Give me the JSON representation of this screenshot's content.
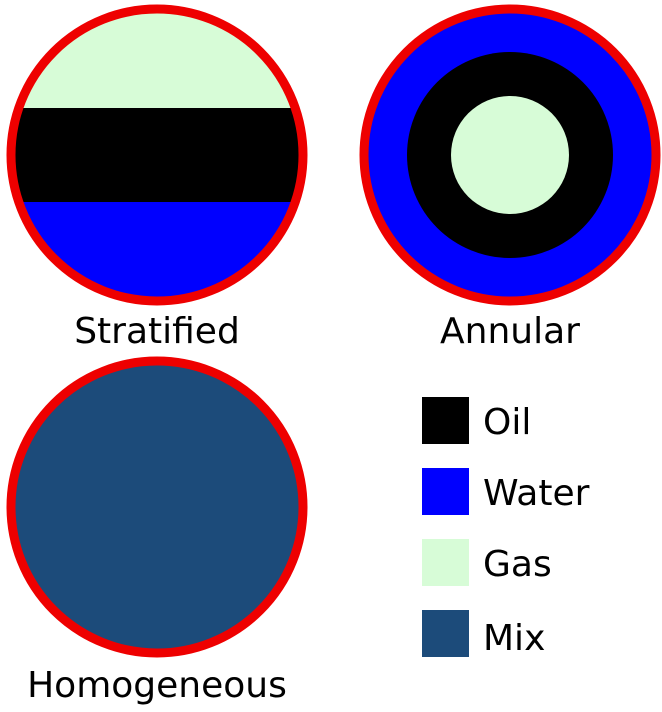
{
  "colors": {
    "oil": "#000000",
    "water": "#0000ff",
    "gas": "#d7fcd7",
    "mix": "#1c4b7a",
    "pipe_wall": "#ee0000"
  },
  "diagrams": [
    {
      "id": "stratified",
      "label": "Stratified"
    },
    {
      "id": "annular",
      "label": "Annular"
    },
    {
      "id": "homogeneous",
      "label": "Homogeneous"
    }
  ],
  "legend": [
    {
      "label": "Oil",
      "color": "#000000"
    },
    {
      "label": "Water",
      "color": "#0000ff"
    },
    {
      "label": "Gas",
      "color": "#d7fcd7"
    },
    {
      "label": "Mix",
      "color": "#1c4b7a"
    }
  ]
}
